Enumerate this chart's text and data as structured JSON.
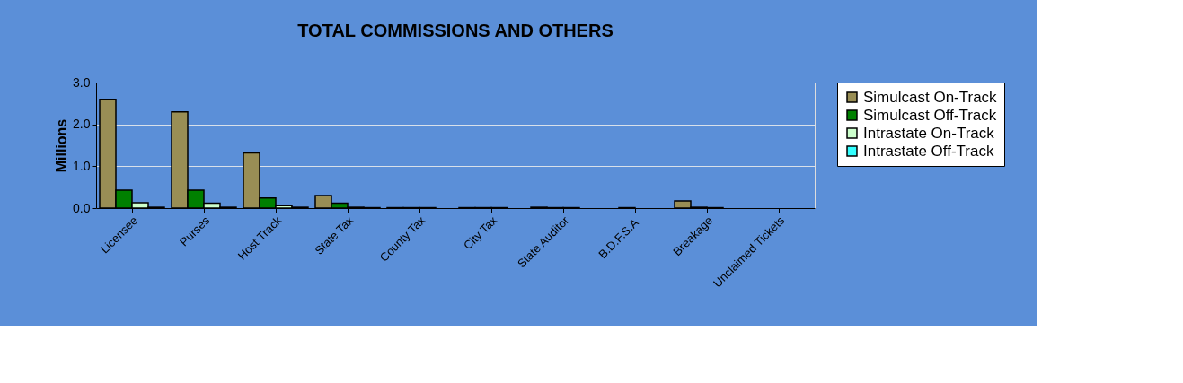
{
  "chart_data": {
    "type": "bar",
    "title": "TOTAL COMMISSIONS AND OTHERS",
    "ylabel": "Millions",
    "categories": [
      "Licensee",
      "Purses",
      "Host Track",
      "State Tax",
      "County Tax",
      "City Tax",
      "State Auditor",
      "B.D.F.S.A.",
      "Breakage",
      "Unclaimed Tickets"
    ],
    "series": [
      {
        "name": "Simulcast On-Track",
        "color": "#998e55",
        "values": [
          2.6,
          2.3,
          1.32,
          0.3,
          0.01,
          0.01,
          0.02,
          null,
          0.17,
          null
        ]
      },
      {
        "name": "Simulcast Off-Track",
        "color": "#008000",
        "values": [
          0.43,
          0.43,
          0.24,
          0.12,
          0.01,
          0.01,
          0.01,
          0.01,
          0.02,
          null
        ]
      },
      {
        "name": "Intrastate On-Track",
        "color": "#ccffcc",
        "values": [
          0.13,
          0.12,
          0.06,
          0.02,
          0.01,
          0.01,
          0.01,
          null,
          0.01,
          null
        ]
      },
      {
        "name": "Intrastate Off-Track",
        "color": "#33ffff",
        "values": [
          0.02,
          0.02,
          0.02,
          0.01,
          null,
          null,
          null,
          null,
          null,
          null
        ]
      }
    ],
    "ylim": [
      0,
      3
    ],
    "yticks": [
      {
        "value": 0,
        "label": "0.0"
      },
      {
        "value": 1,
        "label": "1.0"
      },
      {
        "value": 2,
        "label": "2.0"
      },
      {
        "value": 3,
        "label": "3.0"
      }
    ],
    "grid": "y",
    "legend": "right"
  }
}
